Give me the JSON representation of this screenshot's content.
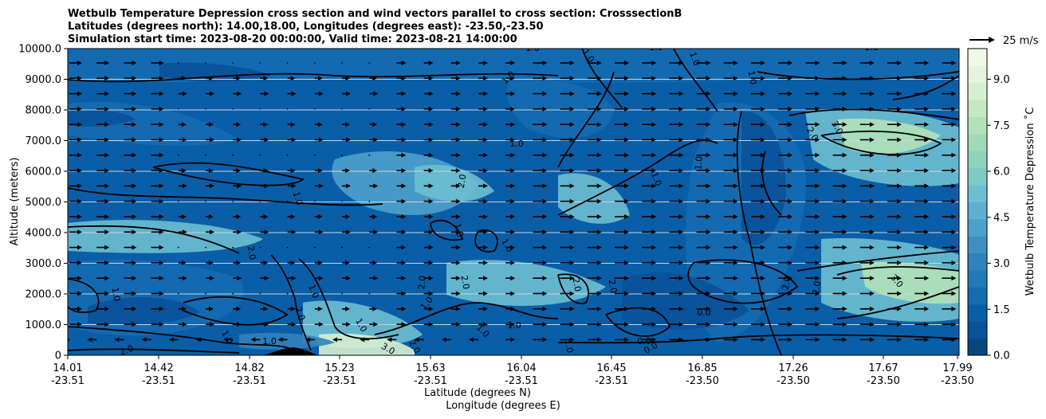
{
  "chart_data": {
    "type": "contour",
    "title_lines": [
      "Wetbulb Temperature Depression cross section and wind vectors parallel to cross section: CrosssectionB",
      "Latitudes (degrees north): 14.00,18.00, Longitudes (degrees east): -23.50,-23.50",
      "Simulation start time: 2023-08-20 00:00:00, Valid time: 2023-08-21 14:00:00"
    ],
    "ylabel": "Altitude (meters)",
    "xlabel_1": "Latitude (degrees N)",
    "xlabel_2": "Longitude (degrees E)",
    "colorbar_label": "Wetbulb Temperature Depression ˚C",
    "colorbar_ticks": [
      "0.0",
      "1.5",
      "3.0",
      "4.5",
      "6.0",
      "7.5",
      "9.0"
    ],
    "colorbar_range": [
      0,
      10
    ],
    "ylim": [
      0,
      10000
    ],
    "y_ticks": [
      "0",
      "1000.0",
      "2000.0",
      "3000.0",
      "4000.0",
      "5000.0",
      "6000.0",
      "7000.0",
      "8000.0",
      "9000.0",
      "10000.0"
    ],
    "x_ticks_lat": [
      "14.01",
      "14.42",
      "14.82",
      "15.23",
      "15.63",
      "16.04",
      "16.45",
      "16.85",
      "17.26",
      "17.67",
      "17.99"
    ],
    "x_ticks_lon": [
      "-23.51",
      "-23.51",
      "-23.51",
      "-23.51",
      "-23.51",
      "-23.51",
      "-23.51",
      "-23.50",
      "-23.50",
      "-23.50",
      "-23.50"
    ],
    "quiver_key": "25 m/s",
    "contour_labels": [
      "1.0",
      "2.0",
      "3.0",
      "0.0"
    ],
    "colors": {
      "cmap": [
        "#08477e",
        "#08529a",
        "#0a5ea8",
        "#156bb0",
        "#2378b6",
        "#3182bd",
        "#3f8fc3",
        "#4ea1cb",
        "#5db0d0",
        "#6cbfd0",
        "#7ecbc4",
        "#8fd3bd",
        "#a1dab8",
        "#b3e1b7",
        "#c5e8c2",
        "#d6efd0",
        "#e4f4dc",
        "#f0f9e8"
      ],
      "terrain": "#000000",
      "contour": "#000000"
    }
  }
}
